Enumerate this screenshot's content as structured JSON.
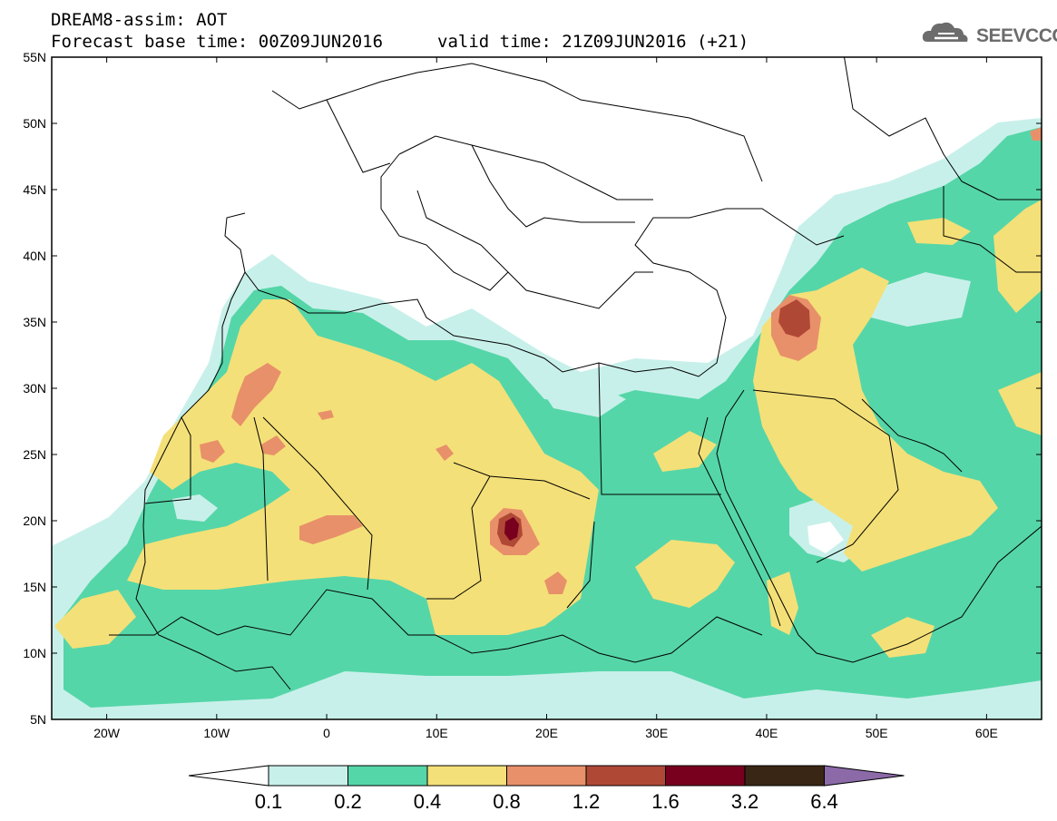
{
  "header": {
    "title": "DREAM8-assim: AOT",
    "base_time": "Forecast base time: 00Z09JUN2016",
    "valid_time": "valid time: 21Z09JUN2016 (+21)",
    "logo_text": "SEEVCCC"
  },
  "map": {
    "lat_labels": [
      "55N",
      "50N",
      "45N",
      "40N",
      "35N",
      "30N",
      "25N",
      "20N",
      "15N",
      "10N",
      "5N"
    ],
    "lon_labels": [
      "20W",
      "10W",
      "0",
      "10E",
      "20E",
      "30E",
      "40E",
      "50E",
      "60E"
    ],
    "lat_range": [
      5,
      55
    ],
    "lon_range": [
      -25,
      65
    ]
  },
  "colorbar": {
    "labels": [
      "0.1",
      "0.2",
      "0.4",
      "0.8",
      "1.2",
      "1.6",
      "3.2",
      "6.4"
    ],
    "colors": {
      "below": "#ffffff",
      "c01_02": "#c8f0ea",
      "c02_04": "#55d6a8",
      "c04_08": "#f4e078",
      "c08_12": "#e8906a",
      "c12_16": "#b04836",
      "c16_32": "#78001e",
      "c32_64": "#3a2614",
      "above": "#8c6aa8"
    }
  }
}
